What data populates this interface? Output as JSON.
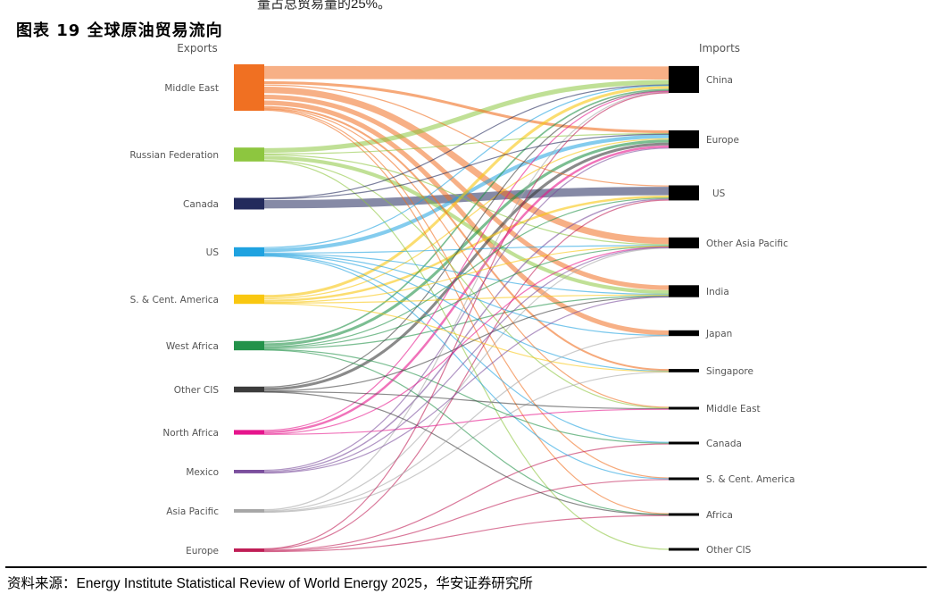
{
  "top_fragment": "量占总贸易量的25%。",
  "figure_title": "图表 19 全球原油贸易流向",
  "source_note": "资料来源：Energy Institute Statistical Review of World Energy 2025，华安证券研究所",
  "chart_data": {
    "type": "sankey",
    "exports_label": "Exports",
    "imports_label": "Imports",
    "sources": [
      {
        "name": "Middle East",
        "color": "#f07022",
        "value": 20
      },
      {
        "name": "Russian Federation",
        "color": "#8dc63f",
        "value": 6
      },
      {
        "name": "Canada",
        "color": "#232a5c",
        "value": 5
      },
      {
        "name": "US",
        "color": "#1fa2e0",
        "value": 4
      },
      {
        "name": "S. & Cent. America",
        "color": "#f9c710",
        "value": 4
      },
      {
        "name": "West Africa",
        "color": "#23924a",
        "value": 4
      },
      {
        "name": "Other CIS",
        "color": "#3c3c3c",
        "value": 2.5
      },
      {
        "name": "North Africa",
        "color": "#e6158c",
        "value": 2
      },
      {
        "name": "Mexico",
        "color": "#7b4f9d",
        "value": 1.5
      },
      {
        "name": "Asia Pacific",
        "color": "#a6a6a6",
        "value": 1.5
      },
      {
        "name": "Europe",
        "color": "#bf1e56",
        "value": 1.5
      }
    ],
    "targets": [
      {
        "name": "China"
      },
      {
        "name": "Europe"
      },
      {
        "name": "US"
      },
      {
        "name": "Other Asia Pacific"
      },
      {
        "name": "India"
      },
      {
        "name": "Japan"
      },
      {
        "name": "Singapore"
      },
      {
        "name": "Middle East"
      },
      {
        "name": "Canada"
      },
      {
        "name": "S. & Cent. America"
      },
      {
        "name": "Africa"
      },
      {
        "name": "Other CIS"
      }
    ],
    "flows": [
      {
        "source": "Middle East",
        "target": "China",
        "value": 7
      },
      {
        "source": "Middle East",
        "target": "Other Asia Pacific",
        "value": 3.5
      },
      {
        "source": "Middle East",
        "target": "India",
        "value": 2.5
      },
      {
        "source": "Middle East",
        "target": "Japan",
        "value": 2.5
      },
      {
        "source": "Middle East",
        "target": "Europe",
        "value": 1.5
      },
      {
        "source": "Middle East",
        "target": "Singapore",
        "value": 1
      },
      {
        "source": "Middle East",
        "target": "US",
        "value": 0.6
      },
      {
        "source": "Middle East",
        "target": "Africa",
        "value": 0.5
      },
      {
        "source": "Middle East",
        "target": "S. & Cent. America",
        "value": 0.3
      },
      {
        "source": "Middle East",
        "target": "Middle East",
        "value": 0.3
      },
      {
        "source": "Russian Federation",
        "target": "China",
        "value": 2.5
      },
      {
        "source": "Russian Federation",
        "target": "India",
        "value": 2
      },
      {
        "source": "Russian Federation",
        "target": "Europe",
        "value": 0.4
      },
      {
        "source": "Russian Federation",
        "target": "Other Asia Pacific",
        "value": 0.4
      },
      {
        "source": "Russian Federation",
        "target": "Middle East",
        "value": 0.3
      },
      {
        "source": "Russian Federation",
        "target": "Other CIS",
        "value": 0.3
      },
      {
        "source": "Canada",
        "target": "US",
        "value": 4.5
      },
      {
        "source": "Canada",
        "target": "China",
        "value": 0.3
      },
      {
        "source": "Canada",
        "target": "Europe",
        "value": 0.2
      },
      {
        "source": "US",
        "target": "Europe",
        "value": 2
      },
      {
        "source": "US",
        "target": "China",
        "value": 0.3
      },
      {
        "source": "US",
        "target": "Other Asia Pacific",
        "value": 0.4
      },
      {
        "source": "US",
        "target": "India",
        "value": 0.3
      },
      {
        "source": "US",
        "target": "Japan",
        "value": 0.2
      },
      {
        "source": "US",
        "target": "Canada",
        "value": 0.4
      },
      {
        "source": "US",
        "target": "S. & Cent. America",
        "value": 0.2
      },
      {
        "source": "US",
        "target": "Singapore",
        "value": 0.2
      },
      {
        "source": "S. & Cent. America",
        "target": "China",
        "value": 1.5
      },
      {
        "source": "S. & Cent. America",
        "target": "US",
        "value": 1.2
      },
      {
        "source": "S. & Cent. America",
        "target": "Europe",
        "value": 0.6
      },
      {
        "source": "S. & Cent. America",
        "target": "India",
        "value": 0.3
      },
      {
        "source": "S. & Cent. America",
        "target": "Other Asia Pacific",
        "value": 0.2
      },
      {
        "source": "S. & Cent. America",
        "target": "Singapore",
        "value": 0.2
      },
      {
        "source": "West Africa",
        "target": "Europe",
        "value": 1.5
      },
      {
        "source": "West Africa",
        "target": "China",
        "value": 0.8
      },
      {
        "source": "West Africa",
        "target": "India",
        "value": 0.6
      },
      {
        "source": "West Africa",
        "target": "US",
        "value": 0.3
      },
      {
        "source": "West Africa",
        "target": "Other Asia Pacific",
        "value": 0.3
      },
      {
        "source": "West Africa",
        "target": "Canada",
        "value": 0.2
      },
      {
        "source": "West Africa",
        "target": "Africa",
        "value": 0.2
      },
      {
        "source": "Other CIS",
        "target": "Europe",
        "value": 1.5
      },
      {
        "source": "Other CIS",
        "target": "China",
        "value": 0.4
      },
      {
        "source": "Other CIS",
        "target": "India",
        "value": 0.2
      },
      {
        "source": "Other CIS",
        "target": "Africa",
        "value": 0.2
      },
      {
        "source": "Other CIS",
        "target": "Middle East",
        "value": 0.2
      },
      {
        "source": "North Africa",
        "target": "Europe",
        "value": 1.2
      },
      {
        "source": "North Africa",
        "target": "China",
        "value": 0.3
      },
      {
        "source": "North Africa",
        "target": "Other Asia Pacific",
        "value": 0.2
      },
      {
        "source": "North Africa",
        "target": "Middle East",
        "value": 0.2
      },
      {
        "source": "Mexico",
        "target": "US",
        "value": 0.7
      },
      {
        "source": "Mexico",
        "target": "Europe",
        "value": 0.3
      },
      {
        "source": "Mexico",
        "target": "India",
        "value": 0.2
      },
      {
        "source": "Mexico",
        "target": "Other Asia Pacific",
        "value": 0.2
      },
      {
        "source": "Asia Pacific",
        "target": "China",
        "value": 0.4
      },
      {
        "source": "Asia Pacific",
        "target": "Other Asia Pacific",
        "value": 0.4
      },
      {
        "source": "Asia Pacific",
        "target": "Singapore",
        "value": 0.3
      },
      {
        "source": "Asia Pacific",
        "target": "Japan",
        "value": 0.2
      },
      {
        "source": "Europe",
        "target": "US",
        "value": 0.4
      },
      {
        "source": "Europe",
        "target": "S. & Cent. America",
        "value": 0.3
      },
      {
        "source": "Europe",
        "target": "Africa",
        "value": 0.3
      },
      {
        "source": "Europe",
        "target": "Canada",
        "value": 0.3
      },
      {
        "source": "Europe",
        "target": "China",
        "value": 0.2
      }
    ]
  }
}
